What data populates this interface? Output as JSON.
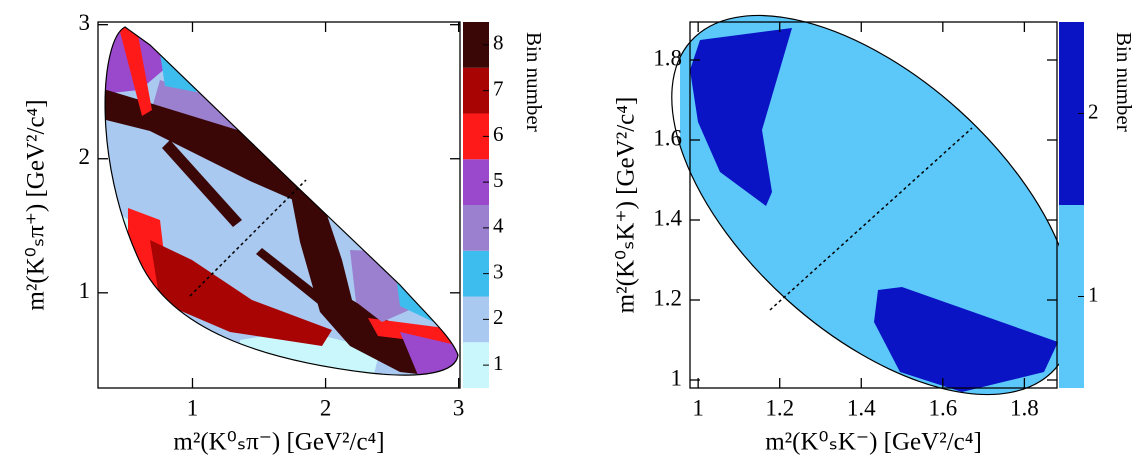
{
  "chart_data": [
    {
      "type": "heatmap",
      "xlabel": "m²(K⁰ₛπ⁻) [GeV²/c⁴]",
      "ylabel": "m²(K⁰ₛπ⁺) [GeV²/c⁴]",
      "xlim": [
        0.29,
        3.01
      ],
      "ylim": [
        0.29,
        3.02
      ],
      "xticks": [
        1,
        2,
        3
      ],
      "yticks": [
        1,
        2,
        3
      ],
      "colorbar": {
        "label": "Bin number",
        "ticks": [
          1,
          2,
          3,
          4,
          5,
          6,
          7,
          8
        ],
        "colors": [
          "#c9f7fb",
          "#a9c9f1",
          "#3cbdee",
          "#9b80cf",
          "#9a48cc",
          "#ff1a1a",
          "#a80404",
          "#3a0606"
        ]
      }
    },
    {
      "type": "heatmap",
      "xlabel": "m²(K⁰ₛK⁻) [GeV²/c⁴]",
      "ylabel": "m²(K⁰ₛK⁺) [GeV²/c⁴]",
      "xlim": [
        0.98,
        1.88
      ],
      "ylim": [
        0.98,
        1.895
      ],
      "xticks": [
        1,
        1.2,
        1.4,
        1.6,
        1.8
      ],
      "yticks": [
        1,
        1.2,
        1.4,
        1.6,
        1.8
      ],
      "colorbar": {
        "label": "Bin number",
        "ticks": [
          1,
          2
        ],
        "colors": [
          "#5cc8fa",
          "#0a14c4"
        ]
      }
    }
  ]
}
